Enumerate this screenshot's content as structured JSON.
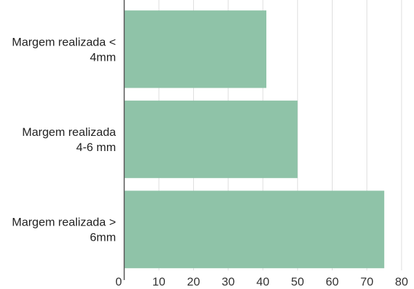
{
  "chart_data": {
    "type": "bar",
    "orientation": "horizontal",
    "categories": [
      [
        "Margem realizada <",
        "4mm"
      ],
      [
        "Margem realizada",
        "4-6 mm"
      ],
      [
        "Margem realizada >",
        "6mm"
      ]
    ],
    "values": [
      41,
      50,
      75
    ],
    "xlim": [
      0,
      80
    ],
    "xticks": [
      "0",
      "10",
      "20",
      "30",
      "40",
      "50",
      "60",
      "70",
      "80"
    ],
    "grid": true,
    "bar_color": "#8fc3a8",
    "axis_color": "#555555",
    "grid_color": "#dddddd"
  }
}
